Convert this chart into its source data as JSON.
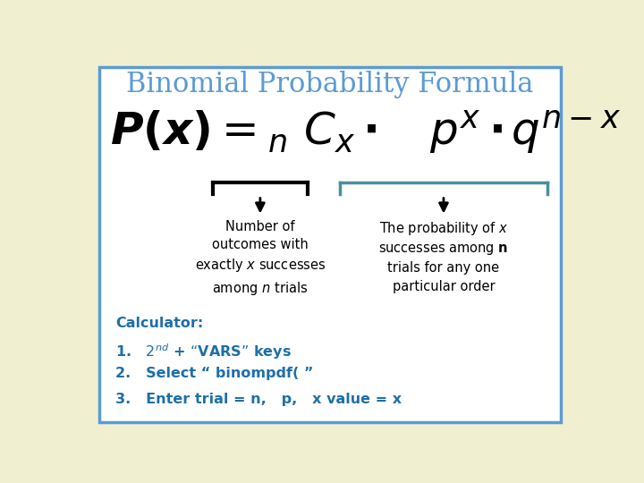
{
  "title": "Binomial Probability Formula",
  "title_color": "#5b9bd5",
  "title_fontsize": 22,
  "bg_outer": "#f0f0d0",
  "bg_inner": "#ffffff",
  "border_color": "#5b9bd5",
  "bracket_left_color": "#000000",
  "bracket_right_color": "#4a8fa0",
  "left_label_line1": "Number of",
  "left_label_line2": "outcomes with",
  "left_label_line3": "exactly ",
  "left_label_line3_italic": "x",
  "left_label_line3_rest": " successes",
  "left_label_line4": "among ",
  "left_label_line4_italic": "n",
  "left_label_line4_rest": " trials",
  "right_label_line1": "The probability of ",
  "right_label_line1_italic": "x",
  "right_label_line2": "successes among ",
  "right_label_line2_bold": "n",
  "right_label_line3": "trials for any one",
  "right_label_line4": "particular order",
  "label_color": "#000000",
  "label_fontsize": 10.5,
  "calc_title": "Calculator:",
  "calc_color": "#1e6fa8",
  "calc_fontsize": 11.5,
  "calc_items": [
    [
      "2",
      "nd",
      " + “VARS” keys"
    ],
    [
      "Select “ binompdf( ”"
    ],
    [
      "Enter trial = n,   p,   x value = x"
    ]
  ],
  "formula_fontsize": 36
}
